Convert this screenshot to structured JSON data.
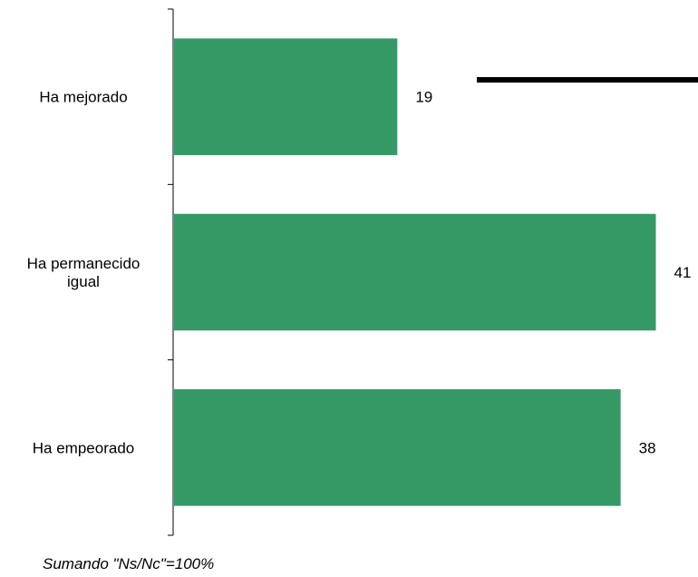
{
  "chart_data": {
    "type": "bar",
    "orientation": "horizontal",
    "categories": [
      [
        "Ha mejorado"
      ],
      [
        "Ha permanecido",
        "igual"
      ],
      [
        "Ha empeorado"
      ]
    ],
    "values": [
      19,
      41,
      38
    ],
    "bar_color": "#359966",
    "xlim": [
      0,
      41.5
    ],
    "grid": false,
    "legend": "none"
  },
  "footnote": "Sumando \"Ns/Nc\"=100%"
}
